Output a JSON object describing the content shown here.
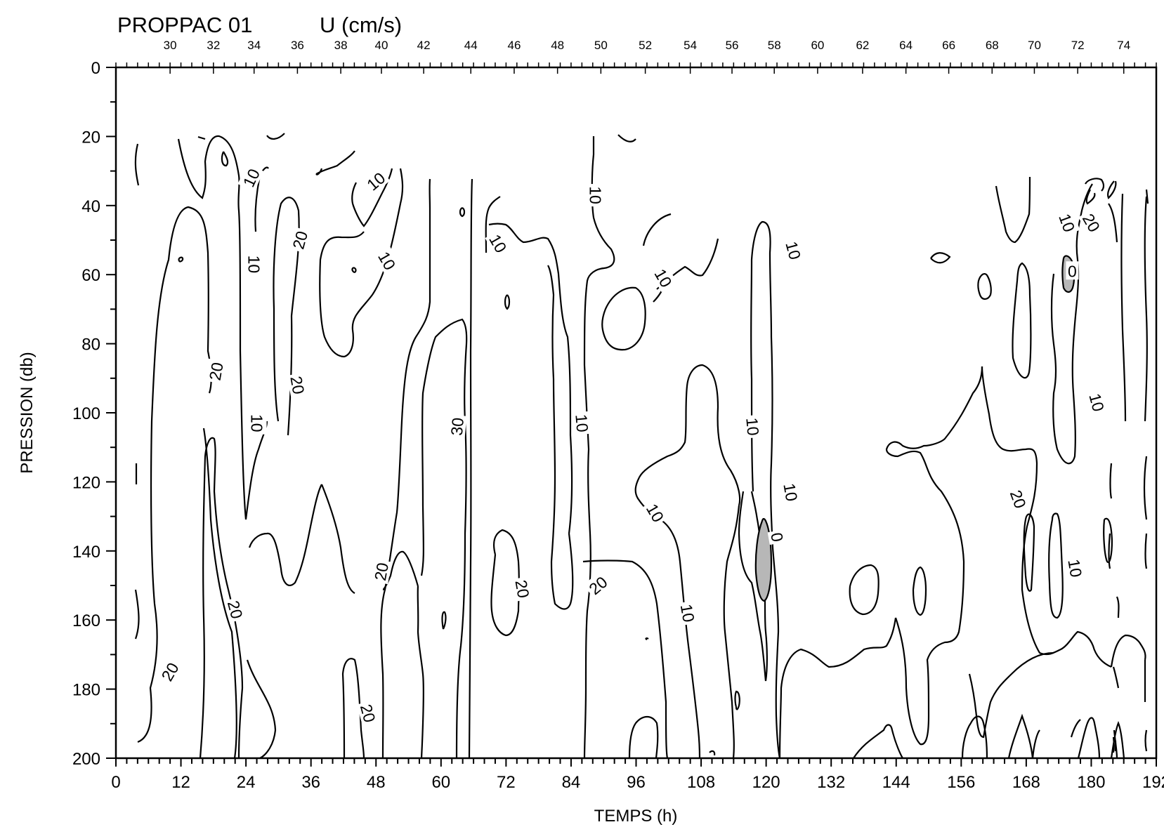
{
  "chart_data": {
    "type": "contour",
    "title": "PROPPAC 01",
    "variable": "U (cm/s)",
    "xlabel": "TEMPS (h)",
    "ylabel": "PRESSION (db)",
    "xlim": [
      0,
      192
    ],
    "ylim": [
      200,
      0
    ],
    "x_ticks": [
      "0",
      "12",
      "24",
      "36",
      "48",
      "60",
      "72",
      "84",
      "96",
      "108",
      "120",
      "132",
      "144",
      "156",
      "168",
      "180",
      "192"
    ],
    "y_ticks": [
      "0",
      "20",
      "40",
      "60",
      "80",
      "100",
      "120",
      "140",
      "160",
      "180",
      "200"
    ],
    "station_ticks": [
      {
        "label": "30",
        "t": 10.0
      },
      {
        "label": "32",
        "t": 18.0
      },
      {
        "label": "34",
        "t": 25.5
      },
      {
        "label": "36",
        "t": 33.5
      },
      {
        "label": "38",
        "t": 41.5
      },
      {
        "label": "40",
        "t": 49.0
      },
      {
        "label": "42",
        "t": 56.8
      },
      {
        "label": "44",
        "t": 65.5
      },
      {
        "label": "46",
        "t": 73.5
      },
      {
        "label": "48",
        "t": 81.5
      },
      {
        "label": "50",
        "t": 89.5
      },
      {
        "label": "52",
        "t": 97.7
      },
      {
        "label": "54",
        "t": 106.0
      },
      {
        "label": "56",
        "t": 113.7
      },
      {
        "label": "58",
        "t": 121.5
      },
      {
        "label": "60",
        "t": 129.5
      },
      {
        "label": "62",
        "t": 137.8
      },
      {
        "label": "64",
        "t": 145.8
      },
      {
        "label": "66",
        "t": 153.7
      },
      {
        "label": "68",
        "t": 161.7
      },
      {
        "label": "70",
        "t": 169.5
      },
      {
        "label": "72",
        "t": 177.5
      },
      {
        "label": "74",
        "t": 186.0
      }
    ],
    "contour_levels": [
      0,
      10,
      20,
      30
    ],
    "contour_labels": [
      {
        "text": "10",
        "t": 25.0,
        "p": 32,
        "rot": -65
      },
      {
        "text": "10",
        "t": 48.0,
        "p": 33,
        "rot": -40
      },
      {
        "text": "10",
        "t": 25.5,
        "p": 57,
        "rot": 90
      },
      {
        "text": "20",
        "t": 34.0,
        "p": 50,
        "rot": -75
      },
      {
        "text": "10",
        "t": 50.0,
        "p": 56,
        "rot": 60
      },
      {
        "text": "10",
        "t": 70.5,
        "p": 51,
        "rot": 60
      },
      {
        "text": "10",
        "t": 88.5,
        "p": 37,
        "rot": 90
      },
      {
        "text": "10",
        "t": 101.0,
        "p": 61,
        "rot": 60
      },
      {
        "text": "10",
        "t": 125.0,
        "p": 53,
        "rot": 75
      },
      {
        "text": "20",
        "t": 180.0,
        "p": 45,
        "rot": 60
      },
      {
        "text": "10",
        "t": 175.5,
        "p": 45,
        "rot": 70
      },
      {
        "text": "0",
        "t": 176.5,
        "p": 59,
        "rot": 0
      },
      {
        "text": "20",
        "t": 18.5,
        "p": 88,
        "rot": -80
      },
      {
        "text": "20",
        "t": 33.5,
        "p": 92,
        "rot": 80
      },
      {
        "text": "10",
        "t": 26.0,
        "p": 103,
        "rot": 90
      },
      {
        "text": "30",
        "t": 63.0,
        "p": 104,
        "rot": -85
      },
      {
        "text": "10",
        "t": 86.0,
        "p": 103,
        "rot": 85
      },
      {
        "text": "10",
        "t": 117.5,
        "p": 104,
        "rot": 85
      },
      {
        "text": "10",
        "t": 124.5,
        "p": 123,
        "rot": 80
      },
      {
        "text": "10",
        "t": 197.5,
        "p": 0,
        "rot": 0
      },
      {
        "text": "10",
        "t": 99.5,
        "p": 129,
        "rot": 60
      },
      {
        "text": "0",
        "t": 122.0,
        "p": 136,
        "rot": 80
      },
      {
        "text": "20",
        "t": 166.5,
        "p": 125,
        "rot": 70
      },
      {
        "text": "10",
        "t": 181.0,
        "p": 97,
        "rot": 75
      },
      {
        "text": "20",
        "t": 49.0,
        "p": 146,
        "rot": -80
      },
      {
        "text": "20",
        "t": 75.0,
        "p": 151,
        "rot": 80
      },
      {
        "text": "20",
        "t": 89.0,
        "p": 150,
        "rot": -40
      },
      {
        "text": "10",
        "t": 177.0,
        "p": 145,
        "rot": 80
      },
      {
        "text": "20",
        "t": 22.0,
        "p": 157,
        "rot": 75
      },
      {
        "text": "10",
        "t": 105.5,
        "p": 158,
        "rot": 80
      },
      {
        "text": "20",
        "t": 10.0,
        "p": 175,
        "rot": -60
      },
      {
        "text": "20",
        "t": 46.5,
        "p": 187,
        "rot": 75
      }
    ],
    "grid": false,
    "legend": "none"
  }
}
